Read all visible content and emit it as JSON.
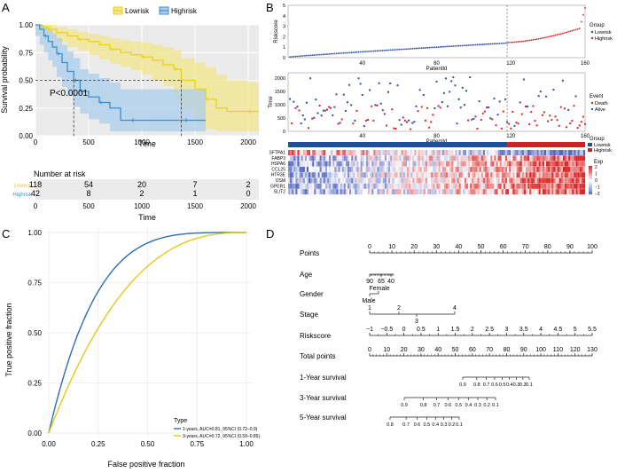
{
  "chart_data": [
    {
      "panel": "A",
      "type": "line",
      "subtype": "kaplan-meier",
      "legend": [
        {
          "name": "Lowrisk",
          "color": "#e8d21a"
        },
        {
          "name": "Highrisk",
          "color": "#3b8fd0"
        }
      ],
      "xlabel": "Time",
      "ylabel": "Survival probability",
      "xlim": [
        0,
        2100
      ],
      "ylim": [
        0,
        1.0
      ],
      "xticks": [
        "0",
        "500",
        "1000",
        "1500",
        "2000"
      ],
      "yticks": [
        "0.00",
        "0.25",
        "0.50",
        "0.75",
        "1.00"
      ],
      "pvalue": "P<0.0001",
      "median_survival": {
        "Highrisk": 360,
        "Lowrisk": 1370
      },
      "series": [
        {
          "name": "Lowrisk",
          "x": [
            0,
            60,
            120,
            200,
            300,
            400,
            500,
            600,
            700,
            800,
            900,
            1000,
            1100,
            1200,
            1300,
            1370,
            1500,
            1600,
            1700,
            1800,
            2000,
            2100
          ],
          "y": [
            1.0,
            0.98,
            0.96,
            0.93,
            0.9,
            0.87,
            0.85,
            0.82,
            0.78,
            0.75,
            0.73,
            0.71,
            0.68,
            0.64,
            0.6,
            0.5,
            0.42,
            0.33,
            0.25,
            0.22,
            0.22,
            0.22
          ],
          "lower": [
            1.0,
            0.95,
            0.92,
            0.88,
            0.84,
            0.8,
            0.77,
            0.73,
            0.69,
            0.65,
            0.62,
            0.59,
            0.55,
            0.5,
            0.45,
            0.33,
            0.24,
            0.13,
            0.06,
            0.04,
            0.04,
            0.04
          ],
          "upper": [
            1.0,
            1.0,
            1.0,
            0.98,
            0.96,
            0.94,
            0.92,
            0.9,
            0.88,
            0.86,
            0.85,
            0.84,
            0.82,
            0.8,
            0.77,
            0.7,
            0.66,
            0.62,
            0.55,
            0.5,
            0.48,
            0.48
          ]
        },
        {
          "name": "Highrisk",
          "x": [
            0,
            40,
            80,
            120,
            160,
            200,
            250,
            300,
            360,
            420,
            500,
            600,
            700,
            800,
            900,
            1000,
            1200,
            1400,
            1600
          ],
          "y": [
            1.0,
            0.96,
            0.9,
            0.85,
            0.8,
            0.74,
            0.66,
            0.58,
            0.5,
            0.4,
            0.35,
            0.3,
            0.25,
            0.14,
            0.14,
            0.14,
            0.14,
            0.14,
            0.14
          ],
          "lower": [
            1.0,
            0.9,
            0.82,
            0.75,
            0.68,
            0.62,
            0.53,
            0.44,
            0.36,
            0.26,
            0.2,
            0.15,
            0.11,
            0.04,
            0.04,
            0.04,
            0.04,
            0.04,
            0.04
          ],
          "upper": [
            1.0,
            1.0,
            0.98,
            0.95,
            0.92,
            0.88,
            0.82,
            0.76,
            0.7,
            0.6,
            0.56,
            0.52,
            0.48,
            0.42,
            0.42,
            0.42,
            0.42,
            0.42,
            0.42
          ]
        }
      ]
    },
    {
      "panel": "A-risk-table",
      "type": "table",
      "title": "Number at risk",
      "xlabel": "Time",
      "columns": [
        "0",
        "500",
        "1000",
        "1500",
        "2000"
      ],
      "rows": [
        {
          "name": "Lowrisk",
          "values": [
            "118",
            "54",
            "20",
            "7",
            "2"
          ]
        },
        {
          "name": "Highrisk",
          "values": [
            "42",
            "8",
            "2",
            "1",
            "0"
          ]
        }
      ]
    },
    {
      "panel": "B-riskscore",
      "type": "scatter",
      "ylabel": "Riskscore",
      "xlabel": "PatientId",
      "xlim": [
        0,
        160
      ],
      "ylim": [
        0,
        5
      ],
      "xticks": [
        "40",
        "80",
        "120",
        "160"
      ],
      "yticks": [
        "0",
        "1",
        "2",
        "3",
        "4",
        "5"
      ],
      "cutoff_index": 118,
      "legend_title": "Group",
      "legend": [
        {
          "name": "Lowrisk",
          "color": "#2f4fa8"
        },
        {
          "name": "Highrisk",
          "color": "#d62728"
        }
      ]
    },
    {
      "panel": "B-time",
      "type": "scatter",
      "ylabel": "Time",
      "xlabel": "PatientId",
      "xlim": [
        0,
        160
      ],
      "ylim": [
        0,
        2200
      ],
      "xticks": [
        "40",
        "80",
        "120",
        "160"
      ],
      "yticks": [
        "0",
        "500",
        "1000",
        "1500",
        "2000"
      ],
      "legend_title": "Event",
      "legend": [
        {
          "name": "Death",
          "color": "#d62728"
        },
        {
          "name": "Alive",
          "color": "#2f4fa8"
        }
      ]
    },
    {
      "panel": "B-heatmap",
      "type": "heatmap",
      "genes": [
        "SFTPA1",
        "FABP3",
        "HSPA6",
        "CCL25",
        "HTR3E",
        "OSM",
        "GPER1",
        "SLIT2"
      ],
      "group_legend_title": "Group",
      "group_legend": [
        "Lowrisk",
        "Highrisk"
      ],
      "exp_legend_title": "Exp",
      "exp_ticks": [
        "2",
        "1",
        "0",
        "−1",
        "−2"
      ]
    },
    {
      "panel": "C",
      "type": "line",
      "subtype": "roc",
      "xlabel": "False positive fraction",
      "ylabel": "True positive fraction",
      "xlim": [
        0,
        1
      ],
      "ylim": [
        0,
        1
      ],
      "xticks": [
        "0.00",
        "0.25",
        "0.50",
        "0.75",
        "1.00"
      ],
      "yticks": [
        "0.00",
        "0.25",
        "0.50",
        "0.75",
        "1.00"
      ],
      "legend_title": "Type",
      "series": [
        {
          "name": "1-years, AUC=0.81, 95%CI (0.72–0.9)",
          "color": "#2a6fb5",
          "auc": 0.81
        },
        {
          "name": "3-years, AUC=0.72, 95%CI (0.59–0.85)",
          "color": "#e8c81a",
          "auc": 0.72
        }
      ]
    },
    {
      "panel": "D",
      "type": "nomogram",
      "rows": [
        {
          "name": "Points",
          "ticks": [
            "0",
            "10",
            "20",
            "30",
            "40",
            "50",
            "60",
            "70",
            "80",
            "90",
            "100"
          ],
          "range": [
            0,
            100
          ]
        },
        {
          "name": "Age",
          "ticks": [
            "90",
            "65",
            "40"
          ],
          "range": [
            0,
            8
          ]
        },
        {
          "name": "Gender",
          "ticks": [
            "Female",
            "Male"
          ],
          "range": [
            0,
            4
          ]
        },
        {
          "name": "Stage",
          "ticks": [
            "1",
            "2",
            "3",
            "4"
          ],
          "range": [
            0,
            38
          ]
        },
        {
          "name": "Riskscore",
          "ticks": [
            "−1",
            "−0.5",
            "0",
            "0.5",
            "1",
            "1.5",
            "2",
            "2.5",
            "3",
            "3.5",
            "4",
            "4.5",
            "5",
            "5.5"
          ],
          "range": [
            0,
            100
          ]
        },
        {
          "name": "Total points",
          "ticks": [
            "0",
            "10",
            "20",
            "30",
            "40",
            "50",
            "60",
            "70",
            "80",
            "90",
            "100",
            "110",
            "120",
            "130"
          ],
          "range": [
            0,
            130
          ]
        },
        {
          "name": "1-Year survival",
          "ticks": [
            "0.9",
            "0.8",
            "0.7",
            "0.6",
            "0.5",
            "0.4",
            "0.3",
            "0.2",
            "0.1"
          ]
        },
        {
          "name": "3-Year survival",
          "ticks": [
            "0.9",
            "0.8",
            "0.7",
            "0.6",
            "0.5",
            "0.4",
            "0.3",
            "0.2",
            "0.1"
          ]
        },
        {
          "name": "5-Year survival",
          "ticks": [
            "0.8",
            "0.7",
            "0.6",
            "0.5",
            "0.4",
            "0.3",
            "0.2",
            "0.1"
          ]
        }
      ]
    }
  ],
  "panels": {
    "a": "A",
    "b": "B",
    "c": "C",
    "d": "D"
  }
}
